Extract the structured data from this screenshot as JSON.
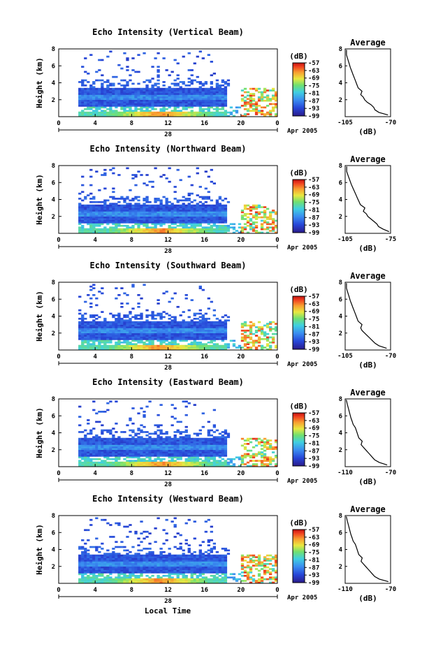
{
  "figure": {
    "x_axis_label": "Local Time",
    "date_label": "Apr 2005",
    "day_label": "28"
  },
  "chart_data": [
    {
      "type": "heatmap",
      "title": "Echo Intensity (Vertical Beam)",
      "ylabel": "Height (km)",
      "ylim": [
        0,
        8
      ],
      "yticks": [
        2,
        4,
        6,
        8
      ],
      "xticks": [
        "0",
        "4",
        "8",
        "12",
        "16",
        "20",
        "0"
      ],
      "xlim": [
        0,
        24
      ],
      "colorbar_label": "(dB)",
      "colorbar_ticks": [
        -57,
        -63,
        -69,
        -75,
        -81,
        -87,
        -93,
        -99
      ],
      "colorbar_range": [
        -99,
        -57
      ],
      "profile": {
        "title": "Average",
        "xlabel": "(dB)",
        "xlim": [
          -105,
          -70
        ],
        "xticks": [
          "-105",
          "-70"
        ],
        "ylim": [
          0,
          8
        ],
        "yticks": [
          2,
          4,
          6,
          8
        ],
        "x": [
          -72,
          -79,
          -82,
          -83,
          -85,
          -88,
          -90,
          -91,
          -93,
          -92,
          -95,
          -96,
          -97,
          -98,
          -99,
          -100,
          -101,
          -102,
          -103,
          -104,
          -104
        ],
        "y": [
          0.2,
          0.5,
          0.8,
          1.1,
          1.4,
          1.7,
          2.0,
          2.3,
          2.6,
          3.0,
          3.4,
          3.8,
          4.2,
          4.6,
          5.0,
          5.4,
          5.8,
          6.3,
          6.8,
          7.3,
          7.9
        ]
      }
    },
    {
      "type": "heatmap",
      "title": "Echo Intensity (Northward Beam)",
      "ylabel": "Height (km)",
      "ylim": [
        0,
        8
      ],
      "yticks": [
        2,
        4,
        6,
        8
      ],
      "xticks": [
        "0",
        "4",
        "8",
        "12",
        "16",
        "20",
        "0"
      ],
      "xlim": [
        0,
        24
      ],
      "colorbar_label": "(dB)",
      "colorbar_ticks": [
        -57,
        -63,
        -69,
        -75,
        -81,
        -87,
        -93,
        -99
      ],
      "colorbar_range": [
        -99,
        -57
      ],
      "profile": {
        "title": "Average",
        "xlabel": "(dB)",
        "xlim": [
          -105,
          -75
        ],
        "xticks": [
          "-105",
          "-75"
        ],
        "ylim": [
          0,
          8
        ],
        "yticks": [
          2,
          4,
          6,
          8
        ],
        "x": [
          -76,
          -80,
          -83,
          -84,
          -86,
          -88,
          -90,
          -91,
          -93,
          -92,
          -95,
          -96,
          -97,
          -98,
          -99,
          -100,
          -101,
          -102,
          -103,
          -104,
          -104
        ],
        "y": [
          0.2,
          0.5,
          0.8,
          1.1,
          1.4,
          1.7,
          2.0,
          2.3,
          2.6,
          3.0,
          3.4,
          3.8,
          4.2,
          4.6,
          5.0,
          5.4,
          5.8,
          6.3,
          6.8,
          7.3,
          7.9
        ]
      }
    },
    {
      "type": "heatmap",
      "title": "Echo Intensity (Southward Beam)",
      "ylabel": "Height (km)",
      "ylim": [
        0,
        8
      ],
      "yticks": [
        2,
        4,
        6,
        8
      ],
      "xticks": [
        "0",
        "4",
        "8",
        "12",
        "16",
        "20",
        "0"
      ],
      "xlim": [
        0,
        24
      ],
      "colorbar_label": "(dB)",
      "colorbar_ticks": [
        -57,
        -63,
        -69,
        -75,
        -81,
        -87,
        -93,
        -99
      ],
      "colorbar_range": [
        -99,
        -57
      ],
      "profile": {
        "title": "Average",
        "xlabel": "(dB)",
        "xlim": [
          -105,
          -70
        ],
        "xticks": [
          "-105",
          "-70"
        ],
        "ylim": [
          0,
          8
        ],
        "yticks": [
          2,
          4,
          6,
          8
        ],
        "x": [
          -73,
          -79,
          -82,
          -84,
          -86,
          -88,
          -90,
          -92,
          -93,
          -92,
          -95,
          -96,
          -97,
          -98,
          -99,
          -100,
          -101,
          -102,
          -103,
          -104,
          -104
        ],
        "y": [
          0.2,
          0.5,
          0.8,
          1.1,
          1.4,
          1.7,
          2.0,
          2.3,
          2.6,
          3.0,
          3.4,
          3.8,
          4.2,
          4.6,
          5.0,
          5.4,
          5.8,
          6.3,
          6.8,
          7.3,
          7.9
        ]
      }
    },
    {
      "type": "heatmap",
      "title": "Echo Intensity (Eastward Beam)",
      "ylabel": "Height (km)",
      "ylim": [
        0,
        8
      ],
      "yticks": [
        2,
        4,
        6,
        8
      ],
      "xticks": [
        "0",
        "4",
        "8",
        "12",
        "16",
        "20",
        "0"
      ],
      "xlim": [
        0,
        24
      ],
      "colorbar_label": "(dB)",
      "colorbar_ticks": [
        -57,
        -63,
        -69,
        -75,
        -81,
        -87,
        -93,
        -99
      ],
      "colorbar_range": [
        -99,
        -57
      ],
      "profile": {
        "title": "Average",
        "xlabel": "(dB)",
        "xlim": [
          -110,
          -70
        ],
        "xticks": [
          "-110",
          "-70"
        ],
        "ylim": [
          0,
          8
        ],
        "yticks": [
          2,
          4,
          6,
          8
        ],
        "x": [
          -73,
          -80,
          -84,
          -86,
          -88,
          -90,
          -92,
          -94,
          -96,
          -95,
          -98,
          -99,
          -100,
          -101,
          -103,
          -104,
          -105,
          -106,
          -107,
          -108,
          -109
        ],
        "y": [
          0.2,
          0.5,
          0.8,
          1.1,
          1.4,
          1.7,
          2.0,
          2.3,
          2.6,
          3.0,
          3.4,
          3.8,
          4.2,
          4.6,
          5.0,
          5.4,
          5.8,
          6.3,
          6.8,
          7.3,
          7.9
        ]
      }
    },
    {
      "type": "heatmap",
      "title": "Echo Intensity (Westward Beam)",
      "ylabel": "Height (km)",
      "ylim": [
        0,
        8
      ],
      "yticks": [
        2,
        4,
        6,
        8
      ],
      "xticks": [
        "0",
        "4",
        "8",
        "12",
        "16",
        "20",
        "0"
      ],
      "xlim": [
        0,
        24
      ],
      "colorbar_label": "(dB)",
      "colorbar_ticks": [
        -57,
        -63,
        -69,
        -75,
        -81,
        -87,
        -93,
        -99
      ],
      "colorbar_range": [
        -99,
        -57
      ],
      "profile": {
        "title": "Average",
        "xlabel": "(dB)",
        "xlim": [
          -110,
          -70
        ],
        "xticks": [
          "-110",
          "-70"
        ],
        "ylim": [
          0,
          8
        ],
        "yticks": [
          2,
          4,
          6,
          8
        ],
        "x": [
          -72,
          -80,
          -84,
          -86,
          -88,
          -90,
          -92,
          -94,
          -96,
          -95,
          -98,
          -99,
          -100,
          -101,
          -103,
          -104,
          -105,
          -106,
          -107,
          -108,
          -109
        ],
        "y": [
          0.2,
          0.5,
          0.8,
          1.1,
          1.4,
          1.7,
          2.0,
          2.3,
          2.6,
          3.0,
          3.4,
          3.8,
          4.2,
          4.6,
          5.0,
          5.4,
          5.8,
          6.3,
          6.8,
          7.3,
          7.9
        ]
      }
    }
  ]
}
